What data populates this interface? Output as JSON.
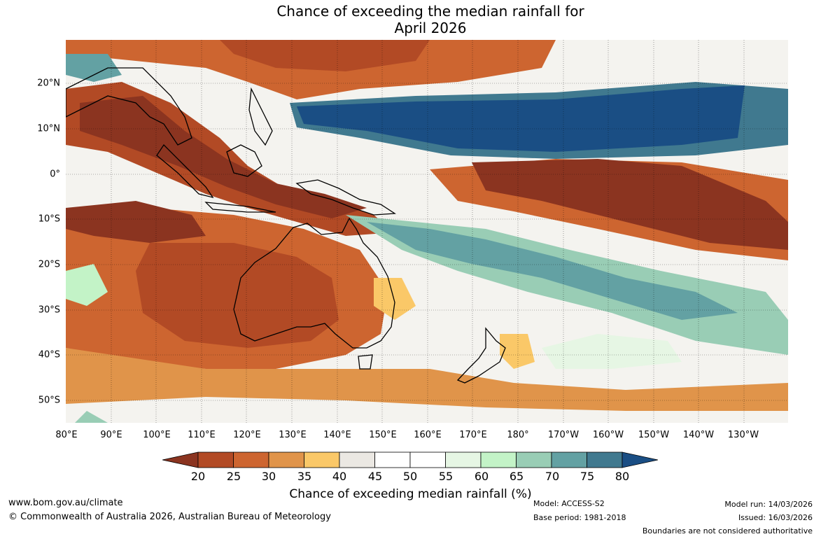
{
  "title": {
    "line1": "Chance of exceeding the median rainfall for",
    "line2": "April 2026"
  },
  "lat_labels": [
    "20°N",
    "10°N",
    "0°",
    "10°S",
    "20°S",
    "30°S",
    "40°S",
    "50°S"
  ],
  "lon_labels": [
    "80°E",
    "90°E",
    "100°E",
    "110°E",
    "120°E",
    "130°E",
    "140°E",
    "150°E",
    "160°E",
    "170°E",
    "180°",
    "170°W",
    "160°W",
    "150°W",
    "140°W",
    "130°W"
  ],
  "colorbar": {
    "ticks": [
      "20",
      "25",
      "30",
      "35",
      "40",
      "45",
      "50",
      "55",
      "60",
      "65",
      "70",
      "75",
      "80"
    ],
    "colors": [
      "#8b3420",
      "#b24a25",
      "#cd6530",
      "#e0944a",
      "#fac868",
      "#ebe8e3",
      "#ffffff",
      "#ffffff",
      "#e6f6e4",
      "#c3f3c7",
      "#99cdb5",
      "#63a1a3",
      "#40798f",
      "#1a4e84"
    ],
    "label": "Chance of exceeding median rainfall (%)"
  },
  "footer": {
    "website": "www.bom.gov.au/climate",
    "copyright": "© Commonwealth of Australia 2026, Australian Bureau of Meteorology",
    "model": "Model: ACCESS-S2",
    "base_period": "Base period: 1981-2018",
    "model_run": "Model run: 14/03/2026",
    "issued": "Issued: 16/03/2026",
    "disclaimer": "Boundaries are not considered authoritative"
  }
}
